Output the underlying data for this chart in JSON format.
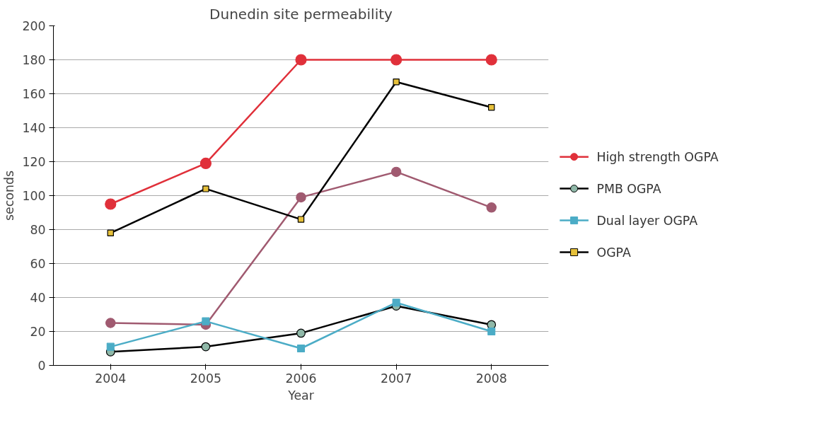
{
  "chart_data": {
    "type": "line",
    "title": "Dunedin site permeability",
    "xlabel": "Year",
    "ylabel": "seconds",
    "categories": [
      "2004",
      "2005",
      "2006",
      "2007",
      "2008"
    ],
    "ylim": [
      0,
      200
    ],
    "yticks": [
      0,
      20,
      40,
      60,
      80,
      100,
      120,
      140,
      160,
      180,
      200
    ],
    "grid": "y",
    "legend": "right",
    "series": [
      {
        "name": "High strength OGPA",
        "color": "#e0303a",
        "marker": "circle",
        "values": [
          95,
          119,
          180,
          180,
          180
        ]
      },
      {
        "color": "#a05a70",
        "marker": "circle",
        "values": [
          25,
          24,
          99,
          114,
          93
        ]
      },
      {
        "name": "PMB OGPA",
        "color": "#000000",
        "marker": "circle",
        "colors": [
          "#8fb8a8",
          "#8fb8a8",
          "#8fb8a8",
          "#8fb8a8",
          "#8fb8a8"
        ],
        "values": [
          8,
          11,
          19,
          35,
          24
        ]
      },
      {
        "name": "Dual layer OGPA",
        "color": "#4bacc6",
        "marker": "square",
        "values": [
          11,
          26,
          10,
          37,
          20
        ]
      },
      {
        "name": "OGPA",
        "color": "#000000",
        "marker": "square",
        "colors": [
          "#e6c03a",
          "#e6c03a",
          "#e6c03a",
          "#e6c03a",
          "#e6c03a"
        ],
        "values": [
          78,
          104,
          86,
          167,
          152
        ]
      }
    ]
  }
}
